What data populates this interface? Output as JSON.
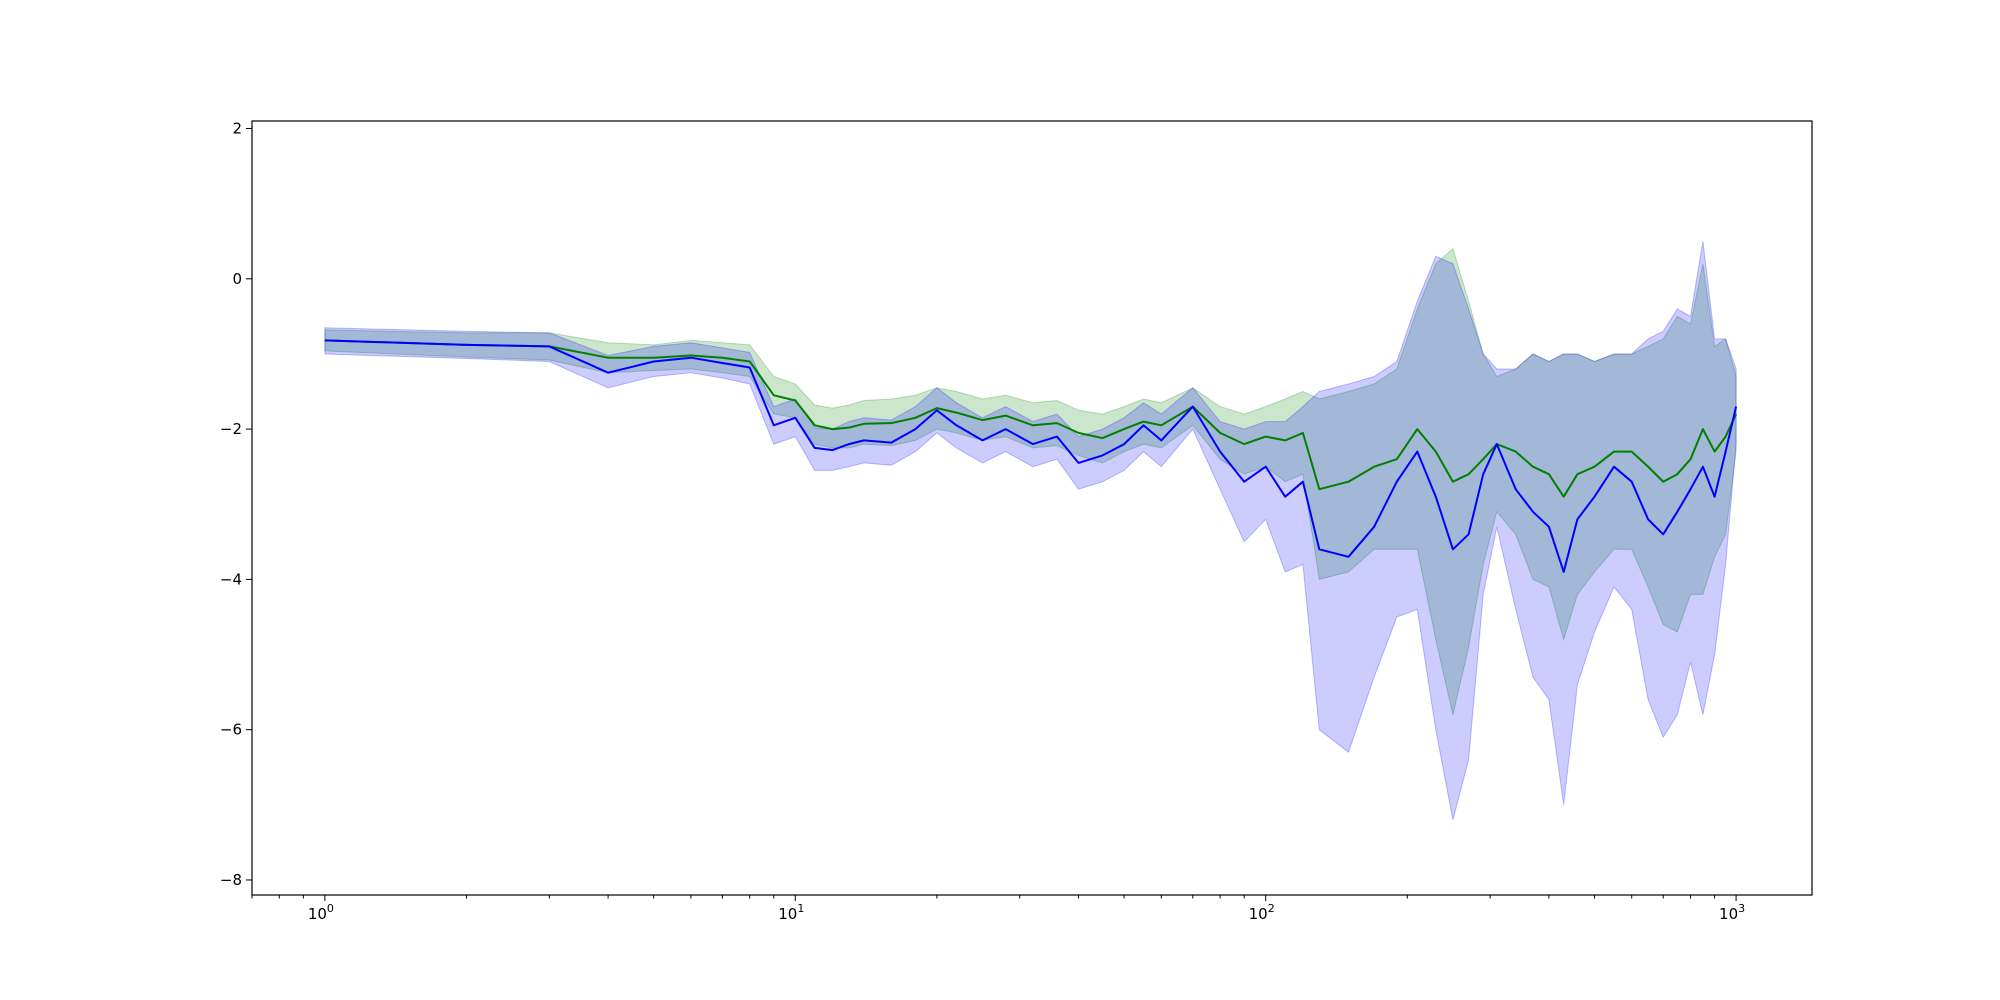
{
  "chart_data": {
    "type": "line",
    "title": "",
    "xlabel": "",
    "ylabel": "",
    "xscale": "log",
    "xlim": [
      0.7,
      1450
    ],
    "ylim": [
      -8.2,
      2.1
    ],
    "grid": false,
    "legend": "none",
    "x_ticks": [
      {
        "value": 1,
        "base": "10",
        "exp": "0"
      },
      {
        "value": 10,
        "base": "10",
        "exp": "1"
      },
      {
        "value": 100,
        "base": "10",
        "exp": "2"
      },
      {
        "value": 1000,
        "base": "10",
        "exp": "3"
      }
    ],
    "y_ticks": [
      {
        "value": 2,
        "label": "2"
      },
      {
        "value": 0,
        "label": "0"
      },
      {
        "value": -2,
        "label": "−2"
      },
      {
        "value": -4,
        "label": "−4"
      },
      {
        "value": -6,
        "label": "−6"
      },
      {
        "value": -8,
        "label": "−8"
      }
    ],
    "series": [
      {
        "color": "#008000",
        "band_color": "#008000",
        "band_opacity": 0.2,
        "points": [
          [
            1,
            -0.82,
            -0.68,
            -0.96
          ],
          [
            2,
            -0.88,
            -0.72,
            -1.04
          ],
          [
            3,
            -0.9,
            -0.72,
            -1.08
          ],
          [
            4,
            -1.05,
            -0.85,
            -1.25
          ],
          [
            5,
            -1.05,
            -0.88,
            -1.22
          ],
          [
            6,
            -1.02,
            -0.82,
            -1.2
          ],
          [
            7,
            -1.05,
            -0.85,
            -1.25
          ],
          [
            8,
            -1.1,
            -0.88,
            -1.3
          ],
          [
            9,
            -1.55,
            -1.3,
            -1.8
          ],
          [
            10,
            -1.62,
            -1.4,
            -1.85
          ],
          [
            11,
            -1.95,
            -1.68,
            -2.2
          ],
          [
            12,
            -2.0,
            -1.72,
            -2.25
          ],
          [
            13,
            -1.98,
            -1.68,
            -2.25
          ],
          [
            14,
            -1.93,
            -1.62,
            -2.2
          ],
          [
            16,
            -1.92,
            -1.6,
            -2.22
          ],
          [
            18,
            -1.85,
            -1.55,
            -2.15
          ],
          [
            20,
            -1.72,
            -1.45,
            -2.0
          ],
          [
            22,
            -1.78,
            -1.5,
            -2.05
          ],
          [
            25,
            -1.88,
            -1.6,
            -2.15
          ],
          [
            28,
            -1.82,
            -1.55,
            -2.1
          ],
          [
            32,
            -1.95,
            -1.65,
            -2.25
          ],
          [
            36,
            -1.92,
            -1.62,
            -2.22
          ],
          [
            40,
            -2.05,
            -1.75,
            -2.35
          ],
          [
            45,
            -2.12,
            -1.8,
            -2.45
          ],
          [
            50,
            -2.0,
            -1.7,
            -2.3
          ],
          [
            55,
            -1.9,
            -1.6,
            -2.2
          ],
          [
            60,
            -1.95,
            -1.65,
            -2.25
          ],
          [
            70,
            -1.7,
            -1.45,
            -1.95
          ],
          [
            80,
            -2.05,
            -1.7,
            -2.4
          ],
          [
            90,
            -2.2,
            -1.8,
            -2.6
          ],
          [
            100,
            -2.1,
            -1.7,
            -2.5
          ],
          [
            110,
            -2.15,
            -1.6,
            -2.7
          ],
          [
            120,
            -2.05,
            -1.5,
            -2.6
          ],
          [
            130,
            -2.8,
            -1.6,
            -4.0
          ],
          [
            150,
            -2.7,
            -1.5,
            -3.9
          ],
          [
            170,
            -2.5,
            -1.4,
            -3.6
          ],
          [
            190,
            -2.4,
            -1.2,
            -3.6
          ],
          [
            210,
            -2.0,
            -0.4,
            -3.6
          ],
          [
            230,
            -2.3,
            0.2,
            -4.8
          ],
          [
            250,
            -2.7,
            0.4,
            -5.8
          ],
          [
            270,
            -2.6,
            -0.3,
            -4.9
          ],
          [
            290,
            -2.4,
            -1.0,
            -3.8
          ],
          [
            310,
            -2.2,
            -1.3,
            -3.1
          ],
          [
            340,
            -2.3,
            -1.2,
            -3.4
          ],
          [
            370,
            -2.5,
            -1.0,
            -4.0
          ],
          [
            400,
            -2.6,
            -1.1,
            -4.1
          ],
          [
            430,
            -2.9,
            -1.0,
            -4.8
          ],
          [
            460,
            -2.6,
            -1.0,
            -4.2
          ],
          [
            500,
            -2.5,
            -1.1,
            -3.9
          ],
          [
            550,
            -2.3,
            -1.0,
            -3.6
          ],
          [
            600,
            -2.3,
            -1.0,
            -3.6
          ],
          [
            650,
            -2.5,
            -0.9,
            -4.1
          ],
          [
            700,
            -2.7,
            -0.8,
            -4.6
          ],
          [
            750,
            -2.6,
            -0.5,
            -4.7
          ],
          [
            800,
            -2.4,
            -0.6,
            -4.2
          ],
          [
            850,
            -2.0,
            0.2,
            -4.2
          ],
          [
            900,
            -2.3,
            -0.9,
            -3.7
          ],
          [
            950,
            -2.1,
            -0.8,
            -3.4
          ],
          [
            1000,
            -1.8,
            -1.3,
            -2.3
          ]
        ]
      },
      {
        "color": "#0000ff",
        "band_color": "#0000ff",
        "band_opacity": 0.2,
        "points": [
          [
            1,
            -0.82,
            -0.65,
            -1.0
          ],
          [
            2,
            -0.88,
            -0.7,
            -1.06
          ],
          [
            3,
            -0.9,
            -0.72,
            -1.1
          ],
          [
            4,
            -1.25,
            -1.02,
            -1.45
          ],
          [
            5,
            -1.1,
            -0.9,
            -1.3
          ],
          [
            6,
            -1.05,
            -0.85,
            -1.25
          ],
          [
            7,
            -1.12,
            -0.92,
            -1.32
          ],
          [
            8,
            -1.18,
            -0.98,
            -1.4
          ],
          [
            9,
            -1.95,
            -1.7,
            -2.2
          ],
          [
            10,
            -1.85,
            -1.6,
            -2.1
          ],
          [
            11,
            -2.25,
            -1.98,
            -2.55
          ],
          [
            12,
            -2.28,
            -2.0,
            -2.55
          ],
          [
            13,
            -2.2,
            -1.9,
            -2.5
          ],
          [
            14,
            -2.15,
            -1.85,
            -2.45
          ],
          [
            16,
            -2.18,
            -1.88,
            -2.48
          ],
          [
            18,
            -2.0,
            -1.7,
            -2.3
          ],
          [
            20,
            -1.75,
            -1.45,
            -2.05
          ],
          [
            22,
            -1.95,
            -1.65,
            -2.25
          ],
          [
            25,
            -2.15,
            -1.85,
            -2.45
          ],
          [
            28,
            -2.0,
            -1.7,
            -2.3
          ],
          [
            32,
            -2.2,
            -1.9,
            -2.5
          ],
          [
            36,
            -2.1,
            -1.8,
            -2.4
          ],
          [
            40,
            -2.45,
            -2.1,
            -2.8
          ],
          [
            45,
            -2.35,
            -2.0,
            -2.7
          ],
          [
            50,
            -2.2,
            -1.85,
            -2.55
          ],
          [
            55,
            -1.95,
            -1.65,
            -2.3
          ],
          [
            60,
            -2.15,
            -1.8,
            -2.5
          ],
          [
            70,
            -1.7,
            -1.45,
            -2.0
          ],
          [
            80,
            -2.3,
            -1.9,
            -2.8
          ],
          [
            90,
            -2.7,
            -2.0,
            -3.5
          ],
          [
            100,
            -2.5,
            -1.9,
            -3.2
          ],
          [
            110,
            -2.9,
            -1.9,
            -3.9
          ],
          [
            120,
            -2.7,
            -1.7,
            -3.8
          ],
          [
            130,
            -3.6,
            -1.5,
            -6.0
          ],
          [
            150,
            -3.7,
            -1.4,
            -6.3
          ],
          [
            170,
            -3.3,
            -1.3,
            -5.3
          ],
          [
            190,
            -2.7,
            -1.1,
            -4.5
          ],
          [
            210,
            -2.3,
            -0.3,
            -4.4
          ],
          [
            230,
            -2.9,
            0.3,
            -6.0
          ],
          [
            250,
            -3.6,
            0.2,
            -7.2
          ],
          [
            270,
            -3.4,
            -0.4,
            -6.4
          ],
          [
            290,
            -2.6,
            -1.0,
            -4.2
          ],
          [
            310,
            -2.2,
            -1.2,
            -3.3
          ],
          [
            340,
            -2.8,
            -1.2,
            -4.4
          ],
          [
            370,
            -3.1,
            -1.0,
            -5.3
          ],
          [
            400,
            -3.3,
            -1.1,
            -5.6
          ],
          [
            430,
            -3.9,
            -1.0,
            -7.0
          ],
          [
            460,
            -3.2,
            -1.0,
            -5.4
          ],
          [
            500,
            -2.9,
            -1.1,
            -4.7
          ],
          [
            550,
            -2.5,
            -1.0,
            -4.1
          ],
          [
            600,
            -2.7,
            -1.0,
            -4.4
          ],
          [
            650,
            -3.2,
            -0.8,
            -5.6
          ],
          [
            700,
            -3.4,
            -0.7,
            -6.1
          ],
          [
            750,
            -3.1,
            -0.4,
            -5.8
          ],
          [
            800,
            -2.8,
            -0.5,
            -5.1
          ],
          [
            850,
            -2.5,
            0.5,
            -5.8
          ],
          [
            900,
            -2.9,
            -0.8,
            -5.0
          ],
          [
            950,
            -2.3,
            -0.8,
            -3.8
          ],
          [
            1000,
            -1.7,
            -1.2,
            -2.2
          ]
        ]
      }
    ]
  }
}
